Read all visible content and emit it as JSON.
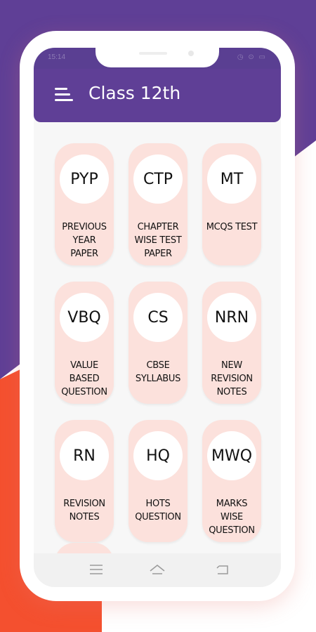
{
  "status_bar": {
    "time": "15:14",
    "icons_right": "◷ ⊙ ▭"
  },
  "app_bar": {
    "title": "Class 12th",
    "menu_icon": "hamburger-menu-icon"
  },
  "cards": [
    {
      "abbr": "PYP",
      "label": "PREVIOUS\nYEAR\nPAPER"
    },
    {
      "abbr": "CTP",
      "label": "CHAPTER\nWISE TEST\nPAPER"
    },
    {
      "abbr": "MT",
      "label": "MCQS TEST"
    },
    {
      "abbr": "VBQ",
      "label": "VALUE\nBASED\nQUESTION"
    },
    {
      "abbr": "CS",
      "label": "CBSE\nSYLLABUS"
    },
    {
      "abbr": "NRN",
      "label": "NEW\nREVISION\nNOTES"
    },
    {
      "abbr": "RN",
      "label": "REVISION\nNOTES"
    },
    {
      "abbr": "HQ",
      "label": "HOTS\nQUESTION"
    },
    {
      "abbr": "MWQ",
      "label": "MARKS\nWISE\nQUESTION"
    }
  ],
  "nav_bar": {
    "icons": [
      "menu-lines-icon",
      "home-icon",
      "back-icon"
    ]
  },
  "colors": {
    "primary": "#5f3f96",
    "accent_red": "#f4502f",
    "card_bg": "#fce1dc"
  }
}
